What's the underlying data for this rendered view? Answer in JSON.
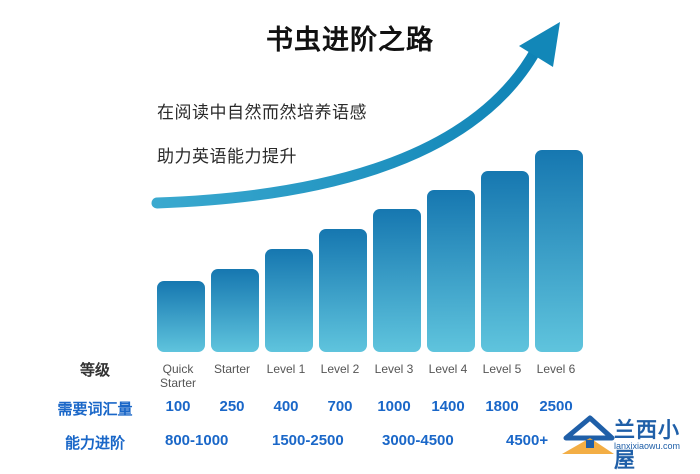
{
  "title": "书虫进阶之路",
  "subtitle_lines": [
    "在阅读中自然而然培养语感",
    "助力英语能力提升"
  ],
  "row_headers": {
    "level": "等级",
    "vocab": "需要词汇量",
    "ability": "能力进阶"
  },
  "levels": [
    "Quick Starter",
    "Starter",
    "Level 1",
    "Level 2",
    "Level 3",
    "Level 4",
    "Level 5",
    "Level 6"
  ],
  "vocab": [
    "100",
    "250",
    "400",
    "700",
    "1000",
    "1400",
    "1800",
    "2500"
  ],
  "ability": [
    "800-1000",
    "1500-2500",
    "3000-4500",
    "4500+"
  ],
  "colors": {
    "bar_top": "#1677b0",
    "bar_bottom": "#5fc4dd",
    "arrow": "#1890b8",
    "header_blue": "#1a67c8"
  },
  "watermark": {
    "text": "兰西小屋",
    "domain": "lanxixiaowu.com"
  }
}
